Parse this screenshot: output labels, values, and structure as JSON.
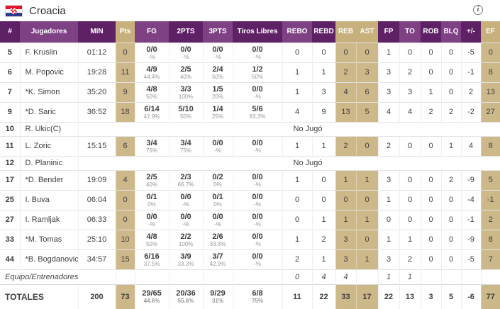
{
  "header": {
    "team": "Croacia",
    "flag_icon": "croatia-flag",
    "info_icon": "i"
  },
  "colors": {
    "header_dark_purple": "#5f2166",
    "header_light_purple": "#7d4184",
    "highlight_tan_header": "#c7b07c",
    "highlight_tan_body": "#cdb88a",
    "flag_red": "#e8112d",
    "flag_blue": "#2a3b8f"
  },
  "table": {
    "columns": [
      "#",
      "Jugadores",
      "MIN",
      "Pts",
      "FG",
      "2PTS",
      "3PTS",
      "Tiros Libres",
      "REBO",
      "REBD",
      "REB",
      "AST",
      "FP",
      "TO",
      "ROB",
      "BLQ",
      "+/-",
      "EF"
    ],
    "column_styles": [
      "dark",
      "light",
      "dark",
      "tan",
      "light",
      "dark",
      "light",
      "dark",
      "light",
      "dark",
      "tan",
      "tan",
      "dark",
      "light",
      "dark",
      "light",
      "dark",
      "tan"
    ],
    "dnp_label": "No Jugó",
    "players": [
      {
        "num": "5",
        "name": "F. Kruslin",
        "min": "01:12",
        "pts": "0",
        "fg": "0/0",
        "fg_pct": "-%",
        "p2": "0/0",
        "p2_pct": "-%",
        "p3": "0/0",
        "p3_pct": "-%",
        "ft": "0/0",
        "ft_pct": "-%",
        "rebo": "0",
        "rebd": "0",
        "reb": "0",
        "ast": "0",
        "fp": "1",
        "to": "0",
        "rob": "0",
        "blq": "0",
        "pm": "-5",
        "ef": "0"
      },
      {
        "num": "6",
        "name": "M. Popovic",
        "min": "19:28",
        "pts": "11",
        "fg": "4/9",
        "fg_pct": "44.4%",
        "p2": "2/5",
        "p2_pct": "40%",
        "p3": "2/4",
        "p3_pct": "50%",
        "ft": "1/2",
        "ft_pct": "50%",
        "rebo": "1",
        "rebd": "1",
        "reb": "2",
        "ast": "3",
        "fp": "3",
        "to": "2",
        "rob": "0",
        "blq": "0",
        "pm": "-1",
        "ef": "8"
      },
      {
        "num": "7",
        "name": "*K. Simon",
        "min": "35:20",
        "pts": "9",
        "fg": "4/8",
        "fg_pct": "50%",
        "p2": "3/3",
        "p2_pct": "100%",
        "p3": "1/5",
        "p3_pct": "20%",
        "ft": "0/0",
        "ft_pct": "-%",
        "rebo": "1",
        "rebd": "3",
        "reb": "4",
        "ast": "6",
        "fp": "3",
        "to": "3",
        "rob": "1",
        "blq": "0",
        "pm": "2",
        "ef": "13"
      },
      {
        "num": "9",
        "name": "*D. Saric",
        "min": "36:52",
        "pts": "18",
        "fg": "6/14",
        "fg_pct": "42.9%",
        "p2": "5/10",
        "p2_pct": "50%",
        "p3": "1/4",
        "p3_pct": "25%",
        "ft": "5/6",
        "ft_pct": "83.3%",
        "rebo": "4",
        "rebd": "9",
        "reb": "13",
        "ast": "5",
        "fp": "4",
        "to": "4",
        "rob": "2",
        "blq": "2",
        "pm": "-2",
        "ef": "27"
      },
      {
        "num": "10",
        "name": "R. Ukic(C)",
        "dnp": true
      },
      {
        "num": "11",
        "name": "L. Zoric",
        "min": "15:15",
        "pts": "6",
        "fg": "3/4",
        "fg_pct": "75%",
        "p2": "3/4",
        "p2_pct": "75%",
        "p3": "0/0",
        "p3_pct": "-%",
        "ft": "0/0",
        "ft_pct": "-%",
        "rebo": "1",
        "rebd": "1",
        "reb": "2",
        "ast": "0",
        "fp": "2",
        "to": "0",
        "rob": "0",
        "blq": "1",
        "pm": "4",
        "ef": "8"
      },
      {
        "num": "12",
        "name": "D. Planinic",
        "dnp": true
      },
      {
        "num": "17",
        "name": "*D. Bender",
        "min": "19:09",
        "pts": "4",
        "fg": "2/5",
        "fg_pct": "40%",
        "p2": "2/3",
        "p2_pct": "66.7%",
        "p3": "0/2",
        "p3_pct": "0%",
        "ft": "0/0",
        "ft_pct": "-%",
        "rebo": "1",
        "rebd": "0",
        "reb": "1",
        "ast": "1",
        "fp": "3",
        "to": "0",
        "rob": "0",
        "blq": "2",
        "pm": "-9",
        "ef": "5"
      },
      {
        "num": "25",
        "name": "I. Buva",
        "min": "06:04",
        "pts": "0",
        "fg": "0/1",
        "fg_pct": "0%",
        "p2": "0/0",
        "p2_pct": "-%",
        "p3": "0/1",
        "p3_pct": "0%",
        "ft": "0/0",
        "ft_pct": "-%",
        "rebo": "0",
        "rebd": "0",
        "reb": "0",
        "ast": "0",
        "fp": "1",
        "to": "0",
        "rob": "0",
        "blq": "0",
        "pm": "-4",
        "ef": "-1"
      },
      {
        "num": "27",
        "name": "I. Ramljak",
        "min": "06:33",
        "pts": "0",
        "fg": "0/0",
        "fg_pct": "-%",
        "p2": "0/0",
        "p2_pct": "-%",
        "p3": "0/0",
        "p3_pct": "-%",
        "ft": "0/0",
        "ft_pct": "-%",
        "rebo": "0",
        "rebd": "1",
        "reb": "1",
        "ast": "1",
        "fp": "0",
        "to": "0",
        "rob": "0",
        "blq": "0",
        "pm": "-1",
        "ef": "2"
      },
      {
        "num": "33",
        "name": "*M. Tomas",
        "min": "25:10",
        "pts": "10",
        "fg": "4/8",
        "fg_pct": "50%",
        "p2": "2/2",
        "p2_pct": "100%",
        "p3": "2/6",
        "p3_pct": "33.3%",
        "ft": "0/0",
        "ft_pct": "-%",
        "rebo": "1",
        "rebd": "2",
        "reb": "3",
        "ast": "0",
        "fp": "1",
        "to": "1",
        "rob": "0",
        "blq": "0",
        "pm": "-9",
        "ef": "8"
      },
      {
        "num": "44",
        "name": "*B. Bogdanovic",
        "min": "34:57",
        "pts": "15",
        "fg": "6/16",
        "fg_pct": "37.5%",
        "p2": "3/9",
        "p2_pct": "33.3%",
        "p3": "3/7",
        "p3_pct": "42.9%",
        "ft": "0/0",
        "ft_pct": "-%",
        "rebo": "2",
        "rebd": "1",
        "reb": "3",
        "ast": "1",
        "fp": "3",
        "to": "2",
        "rob": "0",
        "blq": "0",
        "pm": "-5",
        "ef": "7"
      }
    ],
    "team_row": {
      "label": "Equipo/Entrenadores",
      "rebo": "0",
      "rebd": "4",
      "reb": "4",
      "ast": "",
      "fp": "1",
      "to": "1",
      "rob": "",
      "blq": "",
      "pm": "",
      "ef": ""
    },
    "totals": {
      "label": "TOTALES",
      "min": "200",
      "pts": "73",
      "fg": "29/65",
      "fg_pct": "44.6%",
      "p2": "20/36",
      "p2_pct": "55.6%",
      "p3": "9/29",
      "p3_pct": "31%",
      "ft": "6/8",
      "ft_pct": "75%",
      "rebo": "11",
      "rebd": "22",
      "reb": "33",
      "ast": "17",
      "fp": "22",
      "to": "13",
      "rob": "3",
      "blq": "5",
      "pm": "-6",
      "ef": "77"
    }
  }
}
